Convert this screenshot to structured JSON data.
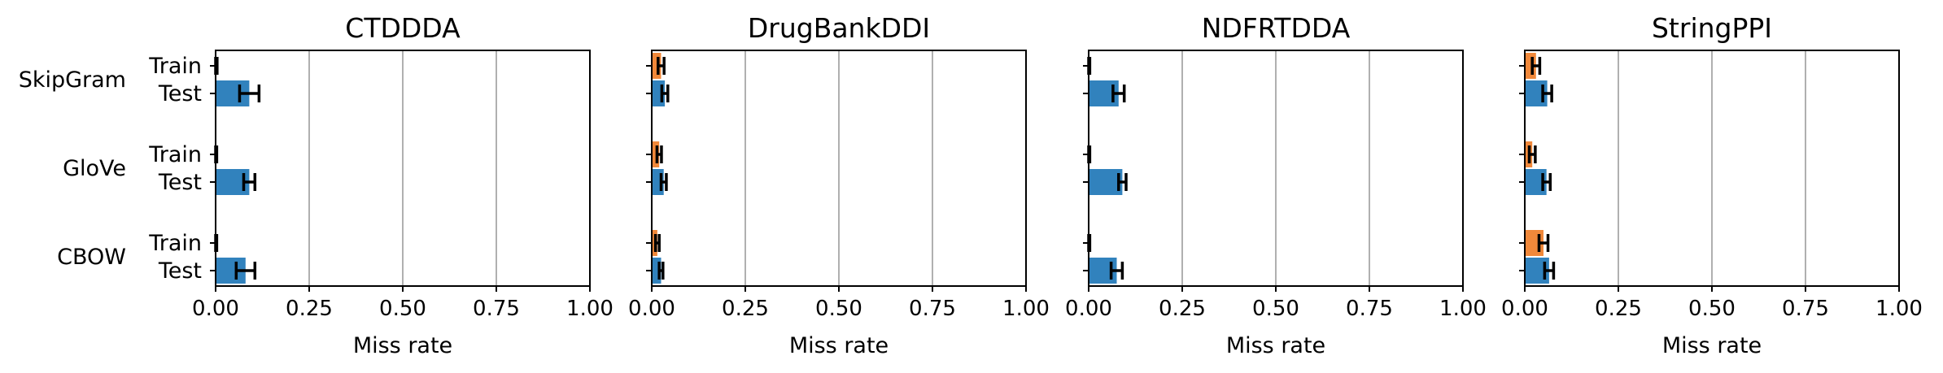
{
  "chart_data": {
    "type": "bar",
    "orientation": "horizontal",
    "xlabel": "Miss rate",
    "xlim": [
      0,
      1
    ],
    "xticks": [
      0.0,
      0.25,
      0.5,
      0.75,
      1.0
    ],
    "xtick_labels": [
      "0.00",
      "0.25",
      "0.50",
      "0.75",
      "1.00"
    ],
    "grid": "vertical",
    "groups": [
      "SkipGram",
      "GloVe",
      "CBOW"
    ],
    "splits": [
      "Train",
      "Test"
    ],
    "colors": {
      "Train": "#f0883a",
      "Test": "#3182bd"
    },
    "panels": [
      {
        "title": "CTDDDA",
        "values": {
          "SkipGram": {
            "Train": [
              0.001,
              0.003
            ],
            "Test": [
              0.09,
              0.026
            ]
          },
          "GloVe": {
            "Train": [
              0.001,
              0.002
            ],
            "Test": [
              0.09,
              0.015
            ]
          },
          "CBOW": {
            "Train": [
              0.001,
              0.002
            ],
            "Test": [
              0.08,
              0.025
            ]
          }
        }
      },
      {
        "title": "DrugBankDDI",
        "values": {
          "SkipGram": {
            "Train": [
              0.025,
              0.008
            ],
            "Test": [
              0.035,
              0.008
            ]
          },
          "GloVe": {
            "Train": [
              0.02,
              0.006
            ],
            "Test": [
              0.032,
              0.007
            ]
          },
          "CBOW": {
            "Train": [
              0.015,
              0.005
            ],
            "Test": [
              0.025,
              0.005
            ]
          }
        }
      },
      {
        "title": "NDFRTDDA",
        "values": {
          "SkipGram": {
            "Train": [
              0.001,
              0.002
            ],
            "Test": [
              0.08,
              0.015
            ]
          },
          "GloVe": {
            "Train": [
              0.001,
              0.002
            ],
            "Test": [
              0.09,
              0.01
            ]
          },
          "CBOW": {
            "Train": [
              0.001,
              0.002
            ],
            "Test": [
              0.075,
              0.015
            ]
          }
        }
      },
      {
        "title": "StringPPI",
        "values": {
          "SkipGram": {
            "Train": [
              0.03,
              0.01
            ],
            "Test": [
              0.06,
              0.012
            ]
          },
          "GloVe": {
            "Train": [
              0.02,
              0.008
            ],
            "Test": [
              0.058,
              0.01
            ]
          },
          "CBOW": {
            "Train": [
              0.05,
              0.012
            ],
            "Test": [
              0.065,
              0.012
            ]
          }
        }
      }
    ]
  }
}
